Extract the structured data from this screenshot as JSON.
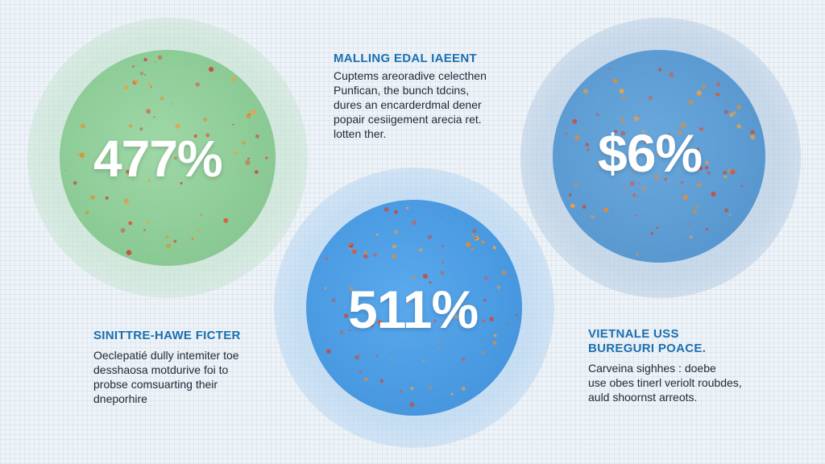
{
  "colors": {
    "green_disc": "#8cce98",
    "mid_blue_disc": "#4ea0e6",
    "right_blue_disc": "#5f9fd6",
    "heading_blue": "#1a6fb0",
    "dot_red": "#d9573e",
    "dot_orange": "#e98a2c"
  },
  "circles": {
    "left": {
      "stat": "477%"
    },
    "middle": {
      "stat": "511%"
    },
    "right": {
      "stat": "$6%"
    }
  },
  "blocks": {
    "top_center": {
      "heading": "MALLING EDAL IAEENT",
      "lines": [
        "Cuptems areoradive celecthen",
        "Punfican, the bunch tdcins,",
        "dures an encarderdmal dener",
        "popair cesiigement arecia ret.",
        "lotten ther."
      ]
    },
    "bottom_left": {
      "heading": "SINITTRE-HAWE FICTER",
      "lines": [
        "Oeclepatié dully intemiter toe",
        "desshaosa motdurive foi to",
        "probse comsuarting their",
        "dneporhire"
      ]
    },
    "bottom_right": {
      "heading": [
        "VIETNALE USS",
        "BUREGURI POACE."
      ],
      "lines": [
        "Carveina sighhes : doebe",
        "use obes tinerl veriolt roubdes,",
        "auld shoornst arreots."
      ]
    }
  }
}
